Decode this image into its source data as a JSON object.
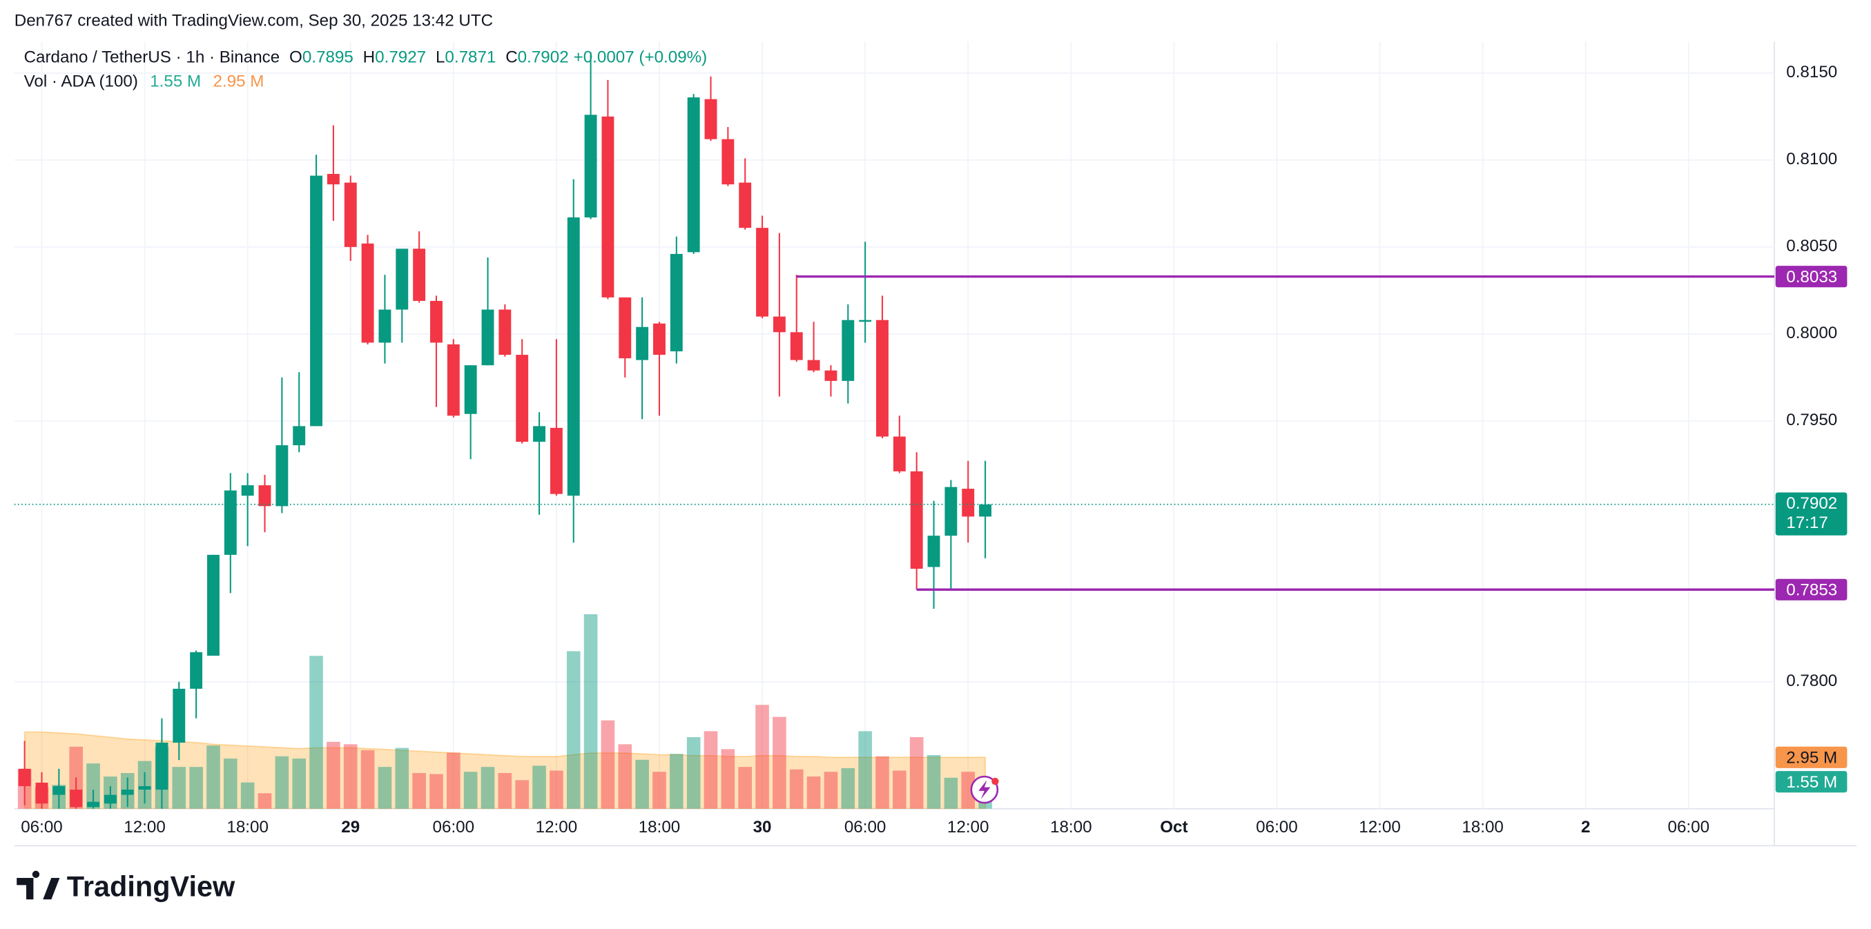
{
  "header": {
    "attribution": "Den767 created with TradingView.com, Sep 30, 2025 13:42 UTC"
  },
  "legend": {
    "symbol": "Cardano / TetherUS · 1h · Binance",
    "ohlc_labels": [
      "O",
      "H",
      "L",
      "C"
    ],
    "change": "+0.0007 (+0.09%)",
    "volume_title": "Vol · ADA (100)",
    "volume": "1.55 M",
    "volume_ma": "2.95 M",
    "countdown": "17:17"
  },
  "footer": {
    "brand": "TradingView"
  },
  "chart_data": {
    "type": "candlestick",
    "x": [
      5,
      6,
      7,
      8,
      9,
      10,
      11,
      12,
      13,
      14,
      15,
      16,
      17,
      18,
      19,
      20,
      21,
      22,
      23,
      24,
      25,
      26,
      27,
      28,
      29,
      30,
      31,
      32,
      33,
      34,
      35,
      36,
      37,
      38,
      39,
      40,
      41,
      42,
      43,
      44,
      45,
      46,
      47,
      48,
      49,
      50,
      51,
      52,
      53,
      54,
      55,
      56,
      57,
      58,
      59,
      60,
      61
    ],
    "open": [
      0.775,
      0.7742,
      0.7735,
      0.7738,
      0.7728,
      0.773,
      0.7735,
      0.7738,
      0.7738,
      0.7765,
      0.7796,
      0.7815,
      0.7873,
      0.7907,
      0.7913,
      0.7901,
      0.7936,
      0.7947,
      0.8092,
      0.8087,
      0.8052,
      0.7995,
      0.8014,
      0.8049,
      0.8019,
      0.7994,
      0.7954,
      0.7982,
      0.8014,
      0.7988,
      0.7938,
      0.7946,
      0.7907,
      0.8067,
      0.8125,
      0.8021,
      0.7985,
      0.8006,
      0.799,
      0.8047,
      0.8135,
      0.8112,
      0.8087,
      0.8061,
      0.801,
      0.8001,
      0.7985,
      0.7979,
      0.7973,
      0.8007,
      0.8008,
      0.7941,
      0.7921,
      0.7866,
      0.7884,
      0.7911,
      0.7895
    ],
    "high": [
      0.7766,
      0.7748,
      0.775,
      0.7745,
      0.7738,
      0.774,
      0.7745,
      0.7748,
      0.7779,
      0.78,
      0.7818,
      0.7873,
      0.792,
      0.792,
      0.7919,
      0.7975,
      0.7978,
      0.8103,
      0.812,
      0.8091,
      0.8057,
      0.8034,
      0.8049,
      0.8059,
      0.8022,
      0.7997,
      0.7982,
      0.8044,
      0.8017,
      0.7997,
      0.7955,
      0.7997,
      0.8089,
      0.8162,
      0.8146,
      0.8021,
      0.8021,
      0.8007,
      0.8056,
      0.8138,
      0.8148,
      0.8119,
      0.8101,
      0.8068,
      0.8058,
      0.8034,
      0.8007,
      0.7982,
      0.8017,
      0.8053,
      0.8022,
      0.7953,
      0.7932,
      0.7904,
      0.7916,
      0.7927,
      0.7927
    ],
    "low": [
      0.7729,
      0.7722,
      0.7725,
      0.772,
      0.7718,
      0.7722,
      0.7728,
      0.773,
      0.7725,
      0.7755,
      0.7779,
      0.7815,
      0.7851,
      0.7878,
      0.7886,
      0.7897,
      0.7932,
      0.7947,
      0.8065,
      0.8042,
      0.7994,
      0.7983,
      0.7995,
      0.8018,
      0.7958,
      0.7952,
      0.7928,
      0.7982,
      0.7987,
      0.7937,
      0.7896,
      0.7907,
      0.788,
      0.8066,
      0.802,
      0.7975,
      0.7951,
      0.7953,
      0.7983,
      0.8046,
      0.8111,
      0.8085,
      0.806,
      0.8009,
      0.7964,
      0.7984,
      0.7978,
      0.7964,
      0.796,
      0.7995,
      0.794,
      0.792,
      0.7853,
      0.7842,
      0.7853,
      0.788,
      0.7871
    ],
    "close": [
      0.774,
      0.773,
      0.774,
      0.7728,
      0.7731,
      0.7735,
      0.7738,
      0.774,
      0.7765,
      0.7796,
      0.7817,
      0.7873,
      0.791,
      0.7913,
      0.7901,
      0.7936,
      0.7947,
      0.8091,
      0.8086,
      0.805,
      0.7995,
      0.8014,
      0.8049,
      0.8019,
      0.7995,
      0.7953,
      0.7982,
      0.8014,
      0.7988,
      0.7938,
      0.7947,
      0.7908,
      0.8067,
      0.8126,
      0.8021,
      0.7986,
      0.8004,
      0.7988,
      0.8046,
      0.8136,
      0.8112,
      0.8086,
      0.8061,
      0.801,
      0.8001,
      0.7985,
      0.7979,
      0.7973,
      0.8008,
      0.8008,
      0.7941,
      0.7921,
      0.7865,
      0.7884,
      0.7912,
      0.7895,
      0.7902
    ],
    "volume": [
      2.26,
      1.23,
      1.37,
      3.56,
      2.6,
      1.85,
      2.05,
      2.74,
      3.56,
      2.4,
      2.4,
      3.63,
      2.88,
      1.51,
      0.89,
      3.01,
      2.88,
      8.77,
      3.84,
      3.7,
      3.36,
      2.4,
      3.49,
      2.05,
      1.99,
      3.22,
      2.12,
      2.4,
      2.05,
      1.64,
      2.47,
      2.19,
      9.04,
      11.16,
      5.07,
      3.7,
      2.81,
      2.12,
      3.15,
      4.11,
      4.45,
      3.42,
      2.4,
      5.96,
      5.27,
      2.26,
      1.85,
      2.12,
      2.33,
      4.45,
      3.01,
      2.19,
      4.11,
      3.08,
      1.78,
      2.12,
      1.55
    ],
    "volume_ma": [
      4.4,
      4.4,
      4.35,
      4.3,
      4.2,
      4.1,
      4.0,
      3.95,
      3.9,
      3.85,
      3.8,
      3.7,
      3.65,
      3.6,
      3.55,
      3.5,
      3.45,
      3.5,
      3.5,
      3.5,
      3.45,
      3.4,
      3.35,
      3.3,
      3.25,
      3.2,
      3.15,
      3.1,
      3.05,
      3.0,
      3.0,
      3.0,
      3.1,
      3.2,
      3.2,
      3.2,
      3.15,
      3.1,
      3.1,
      3.05,
      3.05,
      3.0,
      3.0,
      3.05,
      3.05,
      3.0,
      3.0,
      2.95,
      2.95,
      2.95,
      2.95,
      2.95,
      2.95,
      2.95,
      2.95,
      2.95,
      2.95
    ],
    "up_color": "#089981",
    "down_color": "#f23645",
    "ma_color": "#ff9800",
    "line_color": "#9c27b0",
    "xlim": [
      4.4,
      107
    ],
    "xticks": [
      {
        "value": 6,
        "label": "06:00"
      },
      {
        "value": 12,
        "label": "12:00"
      },
      {
        "value": 18,
        "label": "18:00"
      },
      {
        "value": 24,
        "label": "29"
      },
      {
        "value": 30,
        "label": "06:00"
      },
      {
        "value": 36,
        "label": "12:00"
      },
      {
        "value": 42,
        "label": "18:00"
      },
      {
        "value": 48,
        "label": "30"
      },
      {
        "value": 54,
        "label": "06:00"
      },
      {
        "value": 60,
        "label": "12:00"
      },
      {
        "value": 66,
        "label": "18:00"
      },
      {
        "value": 72,
        "label": "Oct"
      },
      {
        "value": 78,
        "label": "06:00"
      },
      {
        "value": 84,
        "label": "12:00"
      },
      {
        "value": 90,
        "label": "18:00"
      },
      {
        "value": 96,
        "label": "2"
      },
      {
        "value": 102,
        "label": "06:00"
      }
    ],
    "ylim": [
      0.7727,
      0.8168
    ],
    "yticks": [
      {
        "value": 0.78,
        "label": "0.7800"
      },
      {
        "value": 0.795,
        "label": "0.7950"
      },
      {
        "value": 0.8,
        "label": "0.8000"
      },
      {
        "value": 0.805,
        "label": "0.8050"
      },
      {
        "value": 0.81,
        "label": "0.8100"
      },
      {
        "value": 0.815,
        "label": "0.8150"
      }
    ],
    "volume_ylim": [
      0,
      44
    ],
    "hlines": [
      {
        "value": 0.8033,
        "start": 50
      },
      {
        "value": 0.7853,
        "start": 57
      }
    ],
    "grid": true
  }
}
